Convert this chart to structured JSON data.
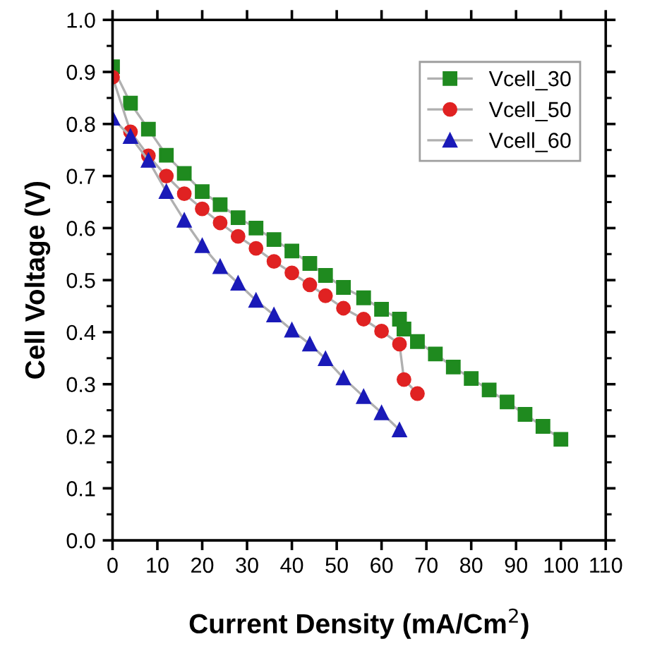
{
  "chart_data": {
    "type": "line",
    "xlabel": "Current Density (mA/Cm$^{2}$)",
    "ylabel": "Cell Voltage (V)",
    "xlim": [
      0,
      110
    ],
    "xticks": [
      0,
      10,
      20,
      30,
      40,
      50,
      60,
      70,
      80,
      90,
      100,
      110
    ],
    "ylim": [
      0,
      1.0
    ],
    "yticks": [
      {
        "value": 0,
        "label": "0.0"
      },
      0.1,
      0.2,
      0.3,
      0.4,
      0.5,
      0.6,
      0.7,
      0.8,
      0.9,
      {
        "value": 1.0,
        "label": "1.0"
      }
    ],
    "grid": false,
    "legend": "top right",
    "line_style": "solid",
    "series": [
      {
        "name": "Vcell_30",
        "color": "#1f8a1f",
        "marker": "square",
        "x": [
          0,
          4,
          8,
          12,
          16,
          20,
          24,
          28,
          32,
          36,
          40,
          44,
          47.5,
          51.5,
          56,
          60,
          64,
          65,
          68,
          72,
          76,
          80,
          84,
          88,
          92,
          96,
          100
        ],
        "values": [
          0.91,
          0.84,
          0.79,
          0.74,
          0.705,
          0.67,
          0.645,
          0.62,
          0.6,
          0.578,
          0.556,
          0.532,
          0.509,
          0.486,
          0.466,
          0.444,
          0.425,
          0.406,
          0.382,
          0.358,
          0.333,
          0.311,
          0.289,
          0.266,
          0.242,
          0.219,
          0.194
        ]
      },
      {
        "name": "Vcell_50",
        "color": "#e02222",
        "marker": "circle",
        "x": [
          0,
          4,
          8,
          12,
          16,
          20,
          24,
          28,
          32,
          36,
          40,
          44,
          47.5,
          51.5,
          56,
          60,
          64,
          65,
          68
        ],
        "values": [
          0.89,
          0.785,
          0.739,
          0.7,
          0.666,
          0.637,
          0.61,
          0.584,
          0.561,
          0.536,
          0.514,
          0.491,
          0.47,
          0.446,
          0.425,
          0.402,
          0.377,
          0.309,
          0.282
        ]
      },
      {
        "name": "Vcell_60",
        "color": "#1a1ab8",
        "marker": "triangle",
        "x": [
          0,
          4,
          8,
          12,
          16,
          20,
          24,
          28,
          32,
          36,
          40,
          44,
          47.5,
          51.5,
          56,
          60,
          64
        ],
        "values": [
          0.811,
          0.776,
          0.73,
          0.67,
          0.615,
          0.566,
          0.526,
          0.494,
          0.461,
          0.433,
          0.404,
          0.377,
          0.349,
          0.312,
          0.276,
          0.245,
          0.212
        ]
      }
    ]
  }
}
